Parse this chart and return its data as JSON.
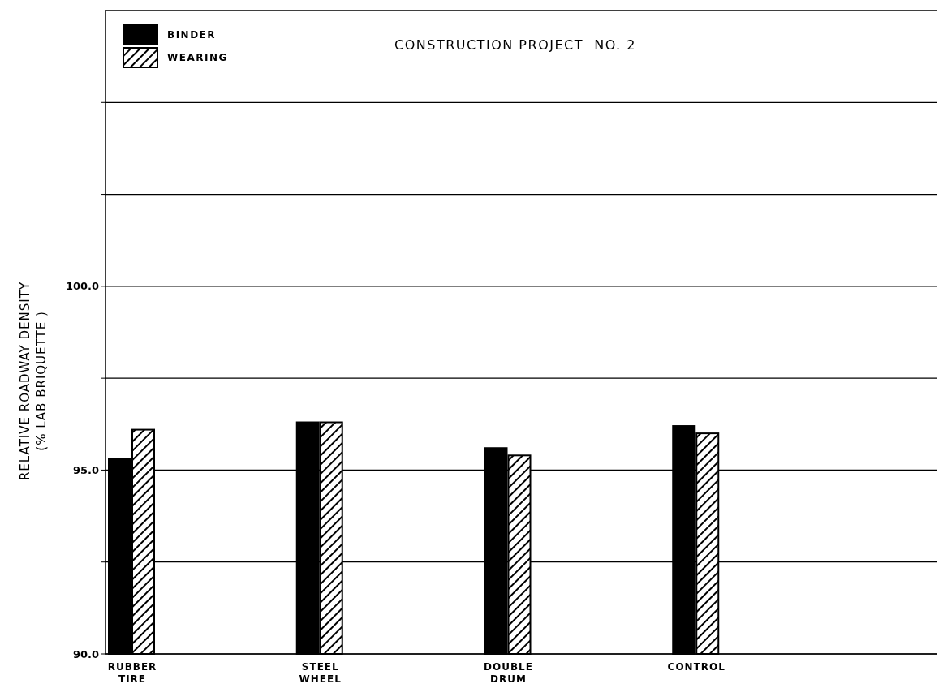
{
  "chart_data": {
    "type": "bar",
    "title": "CONSTRUCTION PROJECT  NO. 2",
    "ylabel": "RELATIVE  ROADWAY  DENSITY\n(% LAB  BRIQUETTE )",
    "categories": [
      "RUBBER\nTIRE",
      "STEEL\nWHEEL",
      "DOUBLE\nDRUM",
      "CONTROL"
    ],
    "series": [
      {
        "name": "BINDER",
        "color": "#000000",
        "values": [
          95.3,
          96.3,
          95.6,
          96.2
        ]
      },
      {
        "name": "WEARING",
        "color": "#000000",
        "values": [
          96.1,
          96.3,
          95.4,
          96.0
        ]
      }
    ],
    "ylim": [
      90,
      107.5
    ],
    "yticks": [
      {
        "value": 90,
        "label": "90.0"
      },
      {
        "value": 92.5,
        "label": null
      },
      {
        "value": 95,
        "label": "95.0"
      },
      {
        "value": 97.5,
        "label": null
      },
      {
        "value": 100,
        "label": "100.0"
      },
      {
        "value": 102.5,
        "label": null
      },
      {
        "value": 105,
        "label": null
      }
    ],
    "grid": "y",
    "legend": "top left"
  }
}
